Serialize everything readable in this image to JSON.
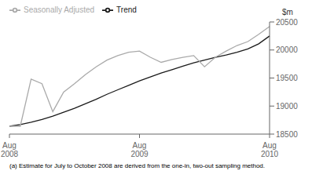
{
  "chart_data": {
    "type": "line",
    "ylabel": "$m",
    "footnote": "(a) Estimate for July to October 2008 are derived from the one-in, two-out sampling method.",
    "categories": [
      "Aug\n2008",
      null,
      null,
      null,
      null,
      null,
      null,
      null,
      null,
      null,
      null,
      null,
      "Aug\n2009",
      null,
      null,
      null,
      null,
      null,
      null,
      null,
      null,
      null,
      null,
      null,
      "Aug\n2010"
    ],
    "series": [
      {
        "name": "Trend",
        "color": "#1a1a1a",
        "values": [
          18640,
          18670,
          18710,
          18760,
          18820,
          18890,
          18960,
          19040,
          19120,
          19210,
          19290,
          19370,
          19450,
          19520,
          19590,
          19650,
          19710,
          19770,
          19820,
          19870,
          19910,
          19960,
          20020,
          20110,
          20250
        ]
      },
      {
        "name": "Seasonally Adjusted",
        "color": "#aaaaaa",
        "values": [
          18640,
          18640,
          19480,
          19400,
          18900,
          19250,
          19400,
          19560,
          19700,
          19820,
          19900,
          19960,
          19980,
          19870,
          19780,
          19830,
          19870,
          19900,
          19700,
          19870,
          19980,
          20080,
          20150,
          20280,
          20420
        ]
      }
    ],
    "ylim": [
      18500,
      20500
    ],
    "yticks": [
      18500,
      19000,
      19500,
      20000,
      20500
    ],
    "grid": false,
    "legend": "upper left"
  }
}
